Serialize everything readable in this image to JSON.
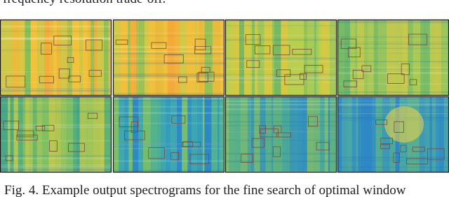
{
  "header": {
    "text": "frequency resolution trade-off."
  },
  "caption": {
    "text": "Fig. 4. Example output spectrograms for the fine search of optimal window"
  }
}
